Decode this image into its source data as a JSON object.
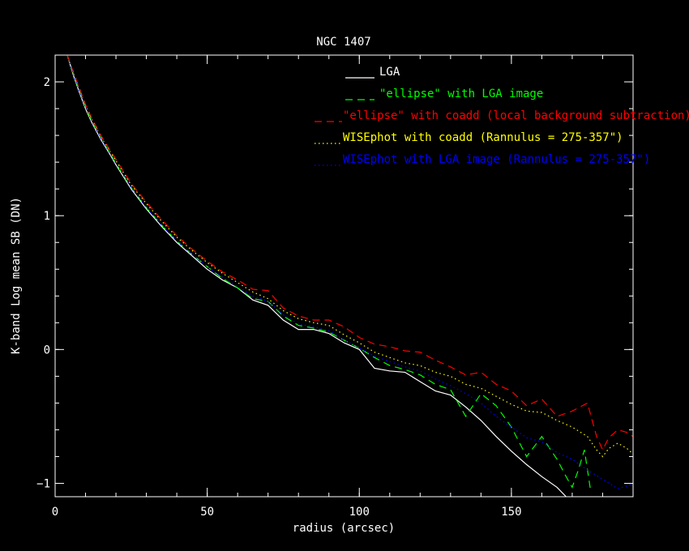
{
  "chart_data": {
    "type": "line",
    "title": "NGC 1407",
    "xlabel": "radius (arcsec)",
    "ylabel": "K-band Log mean SB (DN)",
    "xlim": [
      0,
      190
    ],
    "ylim": [
      -1.1,
      2.2
    ],
    "x_ticks": [
      0,
      50,
      100,
      150
    ],
    "x_tick_labels": [
      "0",
      "50",
      "100",
      "150"
    ],
    "y_ticks": [
      -1,
      0,
      1,
      2
    ],
    "y_tick_labels": [
      "−1",
      "0",
      "1",
      "2"
    ],
    "x_minor_step": 10,
    "y_minor_step": 0.2,
    "grid": false,
    "legend_position": "top-right",
    "series": [
      {
        "name": "LGA",
        "color": "#ffffff",
        "style": "solid",
        "x": [
          4,
          6,
          8,
          10,
          12,
          15,
          18,
          20,
          25,
          30,
          35,
          40,
          45,
          50,
          55,
          60,
          65,
          70,
          75,
          80,
          85,
          90,
          95,
          100,
          105,
          110,
          115,
          120,
          125,
          130,
          135,
          140,
          145,
          150,
          155,
          160,
          165,
          168
        ],
        "y": [
          2.2,
          2.05,
          1.92,
          1.8,
          1.7,
          1.57,
          1.46,
          1.38,
          1.2,
          1.05,
          0.92,
          0.8,
          0.7,
          0.6,
          0.52,
          0.46,
          0.37,
          0.33,
          0.22,
          0.15,
          0.15,
          0.12,
          0.05,
          0.0,
          -0.14,
          -0.16,
          -0.17,
          -0.24,
          -0.31,
          -0.34,
          -0.43,
          -0.53,
          -0.65,
          -0.76,
          -0.86,
          -0.95,
          -1.03,
          -1.1
        ]
      },
      {
        "name": "\"ellipse\" with LGA image",
        "color": "#00ff00",
        "style": "dashed",
        "x": [
          4,
          6,
          8,
          10,
          12,
          15,
          18,
          20,
          25,
          30,
          35,
          40,
          45,
          50,
          55,
          60,
          65,
          70,
          75,
          80,
          85,
          90,
          95,
          100,
          105,
          110,
          115,
          120,
          125,
          130,
          135,
          140,
          145,
          150,
          155,
          160,
          165,
          168,
          170,
          172,
          174,
          176
        ],
        "y": [
          2.2,
          2.06,
          1.93,
          1.81,
          1.71,
          1.58,
          1.47,
          1.39,
          1.21,
          1.06,
          0.93,
          0.81,
          0.71,
          0.62,
          0.53,
          0.46,
          0.38,
          0.36,
          0.25,
          0.18,
          0.16,
          0.13,
          0.07,
          0.01,
          -0.06,
          -0.12,
          -0.15,
          -0.19,
          -0.26,
          -0.3,
          -0.5,
          -0.33,
          -0.42,
          -0.58,
          -0.8,
          -0.65,
          -0.82,
          -0.95,
          -1.03,
          -0.9,
          -0.75,
          -1.05
        ]
      },
      {
        "name": "\"ellipse\" with coadd (local background subtraction)",
        "color": "#ff0000",
        "style": "dashed",
        "x": [
          4,
          6,
          8,
          10,
          12,
          15,
          18,
          20,
          25,
          30,
          35,
          40,
          45,
          50,
          55,
          60,
          65,
          70,
          75,
          80,
          85,
          90,
          95,
          100,
          105,
          110,
          115,
          120,
          125,
          130,
          135,
          140,
          145,
          150,
          155,
          160,
          165,
          170,
          175,
          178,
          180,
          182,
          185,
          188,
          190
        ],
        "y": [
          2.2,
          2.07,
          1.95,
          1.83,
          1.73,
          1.6,
          1.49,
          1.42,
          1.24,
          1.1,
          0.97,
          0.85,
          0.75,
          0.66,
          0.58,
          0.52,
          0.45,
          0.44,
          0.31,
          0.25,
          0.22,
          0.22,
          0.17,
          0.09,
          0.04,
          0.02,
          -0.01,
          -0.02,
          -0.08,
          -0.13,
          -0.19,
          -0.17,
          -0.26,
          -0.31,
          -0.42,
          -0.37,
          -0.5,
          -0.46,
          -0.4,
          -0.65,
          -0.75,
          -0.66,
          -0.6,
          -0.62,
          -0.65
        ]
      },
      {
        "name": "WISEphot with coadd (Rannulus = 275-357\")",
        "color": "#ffff00",
        "style": "dotted",
        "x": [
          4,
          6,
          8,
          10,
          12,
          15,
          18,
          20,
          25,
          30,
          35,
          40,
          45,
          50,
          55,
          60,
          65,
          70,
          75,
          80,
          85,
          90,
          95,
          100,
          105,
          110,
          115,
          120,
          125,
          130,
          135,
          140,
          145,
          150,
          155,
          160,
          165,
          170,
          175,
          178,
          180,
          182,
          185,
          188,
          190
        ],
        "y": [
          2.2,
          2.07,
          1.94,
          1.82,
          1.72,
          1.59,
          1.48,
          1.41,
          1.23,
          1.09,
          0.96,
          0.84,
          0.74,
          0.65,
          0.57,
          0.5,
          0.43,
          0.38,
          0.29,
          0.23,
          0.2,
          0.18,
          0.11,
          0.05,
          -0.02,
          -0.06,
          -0.1,
          -0.12,
          -0.17,
          -0.2,
          -0.26,
          -0.29,
          -0.35,
          -0.41,
          -0.46,
          -0.47,
          -0.53,
          -0.58,
          -0.65,
          -0.75,
          -0.8,
          -0.74,
          -0.7,
          -0.74,
          -0.78
        ]
      },
      {
        "name": "WISEphot with LGA image (Rannulus = 275-357\")",
        "color": "#0000ff",
        "style": "dotted",
        "x": [
          4,
          6,
          8,
          10,
          12,
          15,
          18,
          20,
          25,
          30,
          35,
          40,
          45,
          50,
          55,
          60,
          65,
          70,
          75,
          80,
          85,
          90,
          95,
          100,
          105,
          110,
          115,
          120,
          125,
          130,
          135,
          140,
          145,
          150,
          155,
          160,
          165,
          170,
          175,
          180,
          185,
          188,
          190
        ],
        "y": [
          2.2,
          2.06,
          1.93,
          1.81,
          1.71,
          1.58,
          1.47,
          1.39,
          1.21,
          1.06,
          0.93,
          0.81,
          0.71,
          0.62,
          0.54,
          0.47,
          0.4,
          0.36,
          0.26,
          0.19,
          0.17,
          0.14,
          0.07,
          0.01,
          -0.05,
          -0.09,
          -0.13,
          -0.16,
          -0.22,
          -0.27,
          -0.33,
          -0.4,
          -0.5,
          -0.58,
          -0.66,
          -0.69,
          -0.77,
          -0.82,
          -0.9,
          -0.97,
          -1.04,
          -1.02,
          -1.0
        ]
      }
    ]
  }
}
